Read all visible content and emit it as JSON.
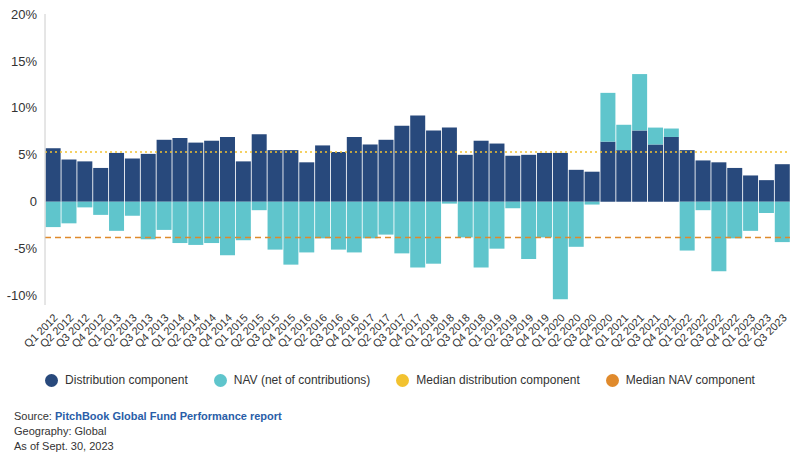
{
  "chart_data": {
    "type": "bar",
    "stacked": true,
    "grid": false,
    "categories": [
      "Q1 2012",
      "Q2 2012",
      "Q3 2012",
      "Q4 2012",
      "Q1 2013",
      "Q2 2013",
      "Q3 2013",
      "Q4 2013",
      "Q1 2014",
      "Q2 2014",
      "Q3 2014",
      "Q4 2014",
      "Q1 2015",
      "Q2 2015",
      "Q3 2015",
      "Q4 2015",
      "Q1 2016",
      "Q2 2016",
      "Q3 2016",
      "Q4 2016",
      "Q1 2017",
      "Q2 2017",
      "Q3 2017",
      "Q4 2017",
      "Q1 2018",
      "Q2 2018",
      "Q3 2018",
      "Q4 2018",
      "Q1 2019",
      "Q2 2019",
      "Q3 2019",
      "Q4 2019",
      "Q1 2020",
      "Q2 2020",
      "Q3 2020",
      "Q4 2020",
      "Q1 2021",
      "Q2 2021",
      "Q3 2021",
      "Q4 2021",
      "Q1 2022",
      "Q2 2022",
      "Q3 2022",
      "Q4 2022",
      "Q1 2023",
      "Q2 2023",
      "Q3 2023"
    ],
    "series": [
      {
        "name": "Distribution component",
        "color": "#28497c",
        "values": [
          5.7,
          4.5,
          4.3,
          3.6,
          5.2,
          4.6,
          5.1,
          6.6,
          6.8,
          6.3,
          6.5,
          6.9,
          4.3,
          7.2,
          5.5,
          5.5,
          4.2,
          6.0,
          5.3,
          6.9,
          6.1,
          6.6,
          8.1,
          9.2,
          7.6,
          7.9,
          5.0,
          6.5,
          6.2,
          4.9,
          5.0,
          5.2,
          5.2,
          3.4,
          3.2,
          6.4,
          5.5,
          7.6,
          6.1,
          6.9,
          5.5,
          4.4,
          4.2,
          3.6,
          2.8,
          2.3,
          4.0
        ]
      },
      {
        "name": "NAV (net of contributions)",
        "color": "#5fc5cc",
        "values": [
          -2.7,
          -2.3,
          -0.6,
          -1.4,
          -3.1,
          -1.5,
          -4.0,
          -3.0,
          -4.4,
          -4.6,
          -4.4,
          -5.7,
          -4.1,
          -0.9,
          -5.1,
          -6.7,
          -5.4,
          -3.9,
          -5.1,
          -5.4,
          -3.9,
          -3.5,
          -5.5,
          -7.0,
          -6.6,
          -0.2,
          -3.8,
          -7.0,
          -5.0,
          -0.7,
          -6.1,
          -3.8,
          -10.4,
          -4.8,
          -0.3,
          5.2,
          2.7,
          6.0,
          1.8,
          0.9,
          -5.2,
          -0.9,
          -7.4,
          -3.9,
          -3.1,
          -1.2,
          -4.3
        ]
      }
    ],
    "reference_lines": [
      {
        "name": "Median distribution component",
        "value": 5.3,
        "color": "#f2c230",
        "line_style": "dotted"
      },
      {
        "name": "Median NAV component",
        "value": -3.8,
        "color": "#e08a2c",
        "line_style": "dashed"
      }
    ],
    "ylim": [
      -11,
      20
    ],
    "yticks": [
      {
        "value": -10,
        "label": "-10%"
      },
      {
        "value": -5,
        "label": "-5%"
      },
      0,
      {
        "value": 5,
        "label": "5%"
      },
      {
        "value": 10,
        "label": "10%"
      },
      {
        "value": 15,
        "label": "15%"
      },
      {
        "value": 20,
        "label": "20%"
      }
    ],
    "legend": "bottom",
    "source_label": "Source:",
    "source": "PitchBook Global Fund Performance report",
    "notes": [
      "Geography: Global",
      "As of Sept. 30, 2023"
    ]
  }
}
